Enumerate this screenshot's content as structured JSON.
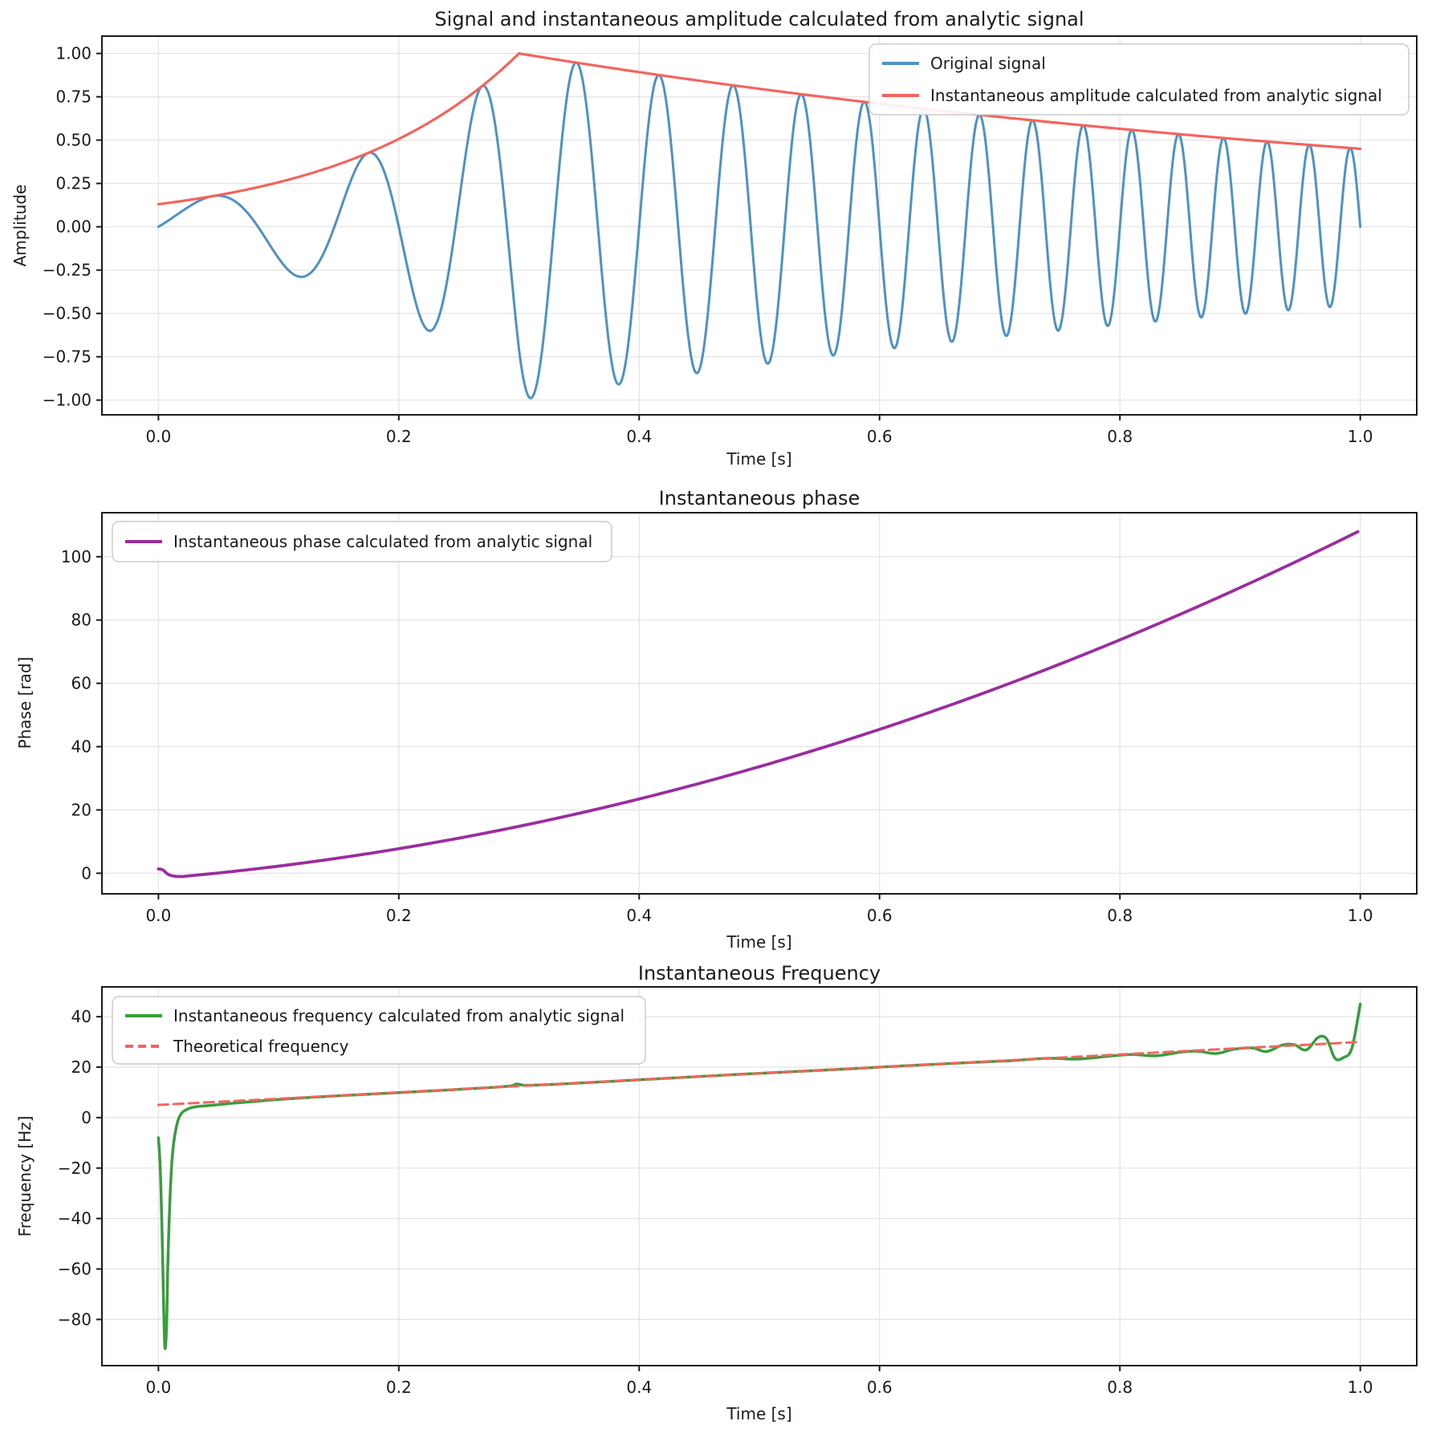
{
  "figure": {
    "background": "#ffffff",
    "text_color": "#1a1a1a",
    "grid_color": "#e4e4e4"
  },
  "chart_data": [
    {
      "id": "amplitude-plot",
      "type": "line",
      "title": "Signal and instantaneous amplitude calculated from analytic signal",
      "xlabel": "Time [s]",
      "ylabel": "Amplitude",
      "xlim": [
        -0.047,
        1.047
      ],
      "ylim": [
        -1.085,
        1.1
      ],
      "grid": true,
      "x_ticks": {
        "values": [
          0.0,
          0.2,
          0.4,
          0.6,
          0.8,
          1.0
        ],
        "labels": [
          "0.0",
          "0.2",
          "0.4",
          "0.6",
          "0.8",
          "1.0"
        ]
      },
      "y_ticks": {
        "values": [
          1.0,
          0.75,
          0.5,
          0.25,
          0.0,
          -0.25,
          -0.5,
          -0.75,
          -1.0
        ],
        "labels": [
          "1.00",
          "0.75",
          "0.50",
          "0.25",
          "0.00",
          "−0.25",
          "−0.50",
          "−0.75",
          "−1.00"
        ]
      },
      "legend": {
        "location": "upper right",
        "entries": [
          {
            "label": "Original signal",
            "color": "#4C92C3",
            "style": "solid"
          },
          {
            "label": "Instantaneous amplitude calculated from analytic signal",
            "color": "#F4645E",
            "style": "solid"
          }
        ]
      },
      "series": [
        {
          "name": "Original signal",
          "color": "#4C92C3",
          "width": 3.0,
          "generator": {
            "kind": "chirp_with_envelope",
            "chirp": {
              "f0_hz": 5,
              "f1_hz": 30,
              "duration_s": 1.0
            },
            "envelope": {
              "peak_time": 0.3,
              "peak_value": 1.0,
              "rise_rate": 6.8,
              "decay_rate": 1.141,
              "value_at_t0": 0.13,
              "value_at_t1": 0.45
            }
          }
        },
        {
          "name": "Instantaneous amplitude calculated from analytic signal",
          "color": "#F4645E",
          "width": 3.2,
          "generator": {
            "kind": "envelope",
            "envelope": {
              "peak_time": 0.3,
              "peak_value": 1.0,
              "rise_rate": 6.8,
              "decay_rate": 1.141,
              "value_at_t0": 0.13,
              "value_at_t1": 0.45
            }
          }
        }
      ]
    },
    {
      "id": "phase-plot",
      "type": "line",
      "title": "Instantaneous phase",
      "xlabel": "Time [s]",
      "ylabel": "Phase [rad]",
      "xlim": [
        -0.047,
        1.047
      ],
      "ylim": [
        -6.5,
        113.9
      ],
      "grid": true,
      "x_ticks": {
        "values": [
          0.0,
          0.2,
          0.4,
          0.6,
          0.8,
          1.0
        ],
        "labels": [
          "0.0",
          "0.2",
          "0.4",
          "0.6",
          "0.8",
          "1.0"
        ]
      },
      "y_ticks": {
        "values": [
          0,
          20,
          40,
          60,
          80,
          100
        ],
        "labels": [
          "0",
          "20",
          "40",
          "60",
          "80",
          "100"
        ]
      },
      "legend": {
        "location": "upper left",
        "entries": [
          {
            "label": "Instantaneous phase calculated from analytic signal",
            "color": "#9A2DA0",
            "style": "solid"
          }
        ]
      },
      "series": [
        {
          "name": "Instantaneous phase calculated from analytic signal",
          "color": "#9A2DA0",
          "width": 3.8,
          "generator": {
            "kind": "quadratic_phase",
            "linear_coef": 31.4159,
            "quadratic_coef": 78.5398,
            "offset": -1.672,
            "start_t": 0.022,
            "artifact_points": [
              [
                0,
                1.35
              ],
              [
                0.002,
                1.3
              ],
              [
                0.004,
                1.0
              ],
              [
                0.006,
                0.3
              ],
              [
                0.008,
                -0.35
              ],
              [
                0.011,
                -0.8
              ],
              [
                0.015,
                -1.0
              ],
              [
                0.02,
                -1.05
              ]
            ],
            "value_at_t1_rad": 108.3
          }
        }
      ]
    },
    {
      "id": "frequency-plot",
      "type": "line",
      "title": "Instantaneous Frequency",
      "xlabel": "Time [s]",
      "ylabel": "Frequency [Hz]",
      "xlim": [
        -0.047,
        1.047
      ],
      "ylim": [
        -98.3,
        51.8
      ],
      "grid": true,
      "x_ticks": {
        "values": [
          0.0,
          0.2,
          0.4,
          0.6,
          0.8,
          1.0
        ],
        "labels": [
          "0.0",
          "0.2",
          "0.4",
          "0.6",
          "0.8",
          "1.0"
        ]
      },
      "y_ticks": {
        "values": [
          40,
          20,
          0,
          -20,
          -40,
          -60,
          -80
        ],
        "labels": [
          "40",
          "20",
          "0",
          "−20",
          "−40",
          "−60",
          "−80"
        ]
      },
      "legend": {
        "location": "upper left",
        "entries": [
          {
            "label": "Instantaneous frequency calculated from analytic signal",
            "color": "#389E3C",
            "style": "solid"
          },
          {
            "label": "Theoretical frequency",
            "color": "#F4645E",
            "style": "dashed"
          }
        ]
      },
      "series": [
        {
          "name": "Instantaneous frequency calculated from analytic signal",
          "color": "#389E3C",
          "width": 3.5,
          "generator": {
            "kind": "spline",
            "points": [
              [
                0.0,
                -8
              ],
              [
                0.0015,
                -20
              ],
              [
                0.003,
                -45
              ],
              [
                0.0045,
                -78
              ],
              [
                0.0055,
                -91.5
              ],
              [
                0.0068,
                -82
              ],
              [
                0.008,
                -55
              ],
              [
                0.01,
                -28
              ],
              [
                0.012,
                -13
              ],
              [
                0.015,
                -3.5
              ],
              [
                0.018,
                0.8
              ],
              [
                0.022,
                2.8
              ],
              [
                0.03,
                4.2
              ],
              [
                0.045,
                4.9
              ],
              [
                0.06,
                5.6
              ],
              [
                0.08,
                6.4
              ],
              [
                0.1,
                7.2
              ],
              [
                0.13,
                8.1
              ],
              [
                0.16,
                8.9
              ],
              [
                0.2,
                9.9
              ],
              [
                0.25,
                11.2
              ],
              [
                0.29,
                12.4
              ],
              [
                0.298,
                13.3
              ],
              [
                0.306,
                12.8
              ],
              [
                0.33,
                13.2
              ],
              [
                0.37,
                14.2
              ],
              [
                0.42,
                15.5
              ],
              [
                0.47,
                16.8
              ],
              [
                0.52,
                18.0
              ],
              [
                0.57,
                19.2
              ],
              [
                0.62,
                20.5
              ],
              [
                0.67,
                21.7
              ],
              [
                0.71,
                22.6
              ],
              [
                0.74,
                23.5
              ],
              [
                0.765,
                23.2
              ],
              [
                0.79,
                24.3
              ],
              [
                0.81,
                25.0
              ],
              [
                0.83,
                24.5
              ],
              [
                0.85,
                25.9
              ],
              [
                0.865,
                26.3
              ],
              [
                0.88,
                25.4
              ],
              [
                0.895,
                27.1
              ],
              [
                0.91,
                27.6
              ],
              [
                0.922,
                26.2
              ],
              [
                0.935,
                28.7
              ],
              [
                0.945,
                28.9
              ],
              [
                0.955,
                26.8
              ],
              [
                0.965,
                31.8
              ],
              [
                0.972,
                31.2
              ],
              [
                0.979,
                23.5
              ],
              [
                0.986,
                23.8
              ],
              [
                0.993,
                27.5
              ],
              [
                1.0,
                45
              ]
            ]
          }
        },
        {
          "name": "Theoretical frequency",
          "color": "#F4645E",
          "width": 3.0,
          "dash": "12 7",
          "generator": {
            "kind": "line",
            "points": [
              [
                0,
                5
              ],
              [
                1,
                30
              ]
            ]
          }
        }
      ]
    }
  ]
}
